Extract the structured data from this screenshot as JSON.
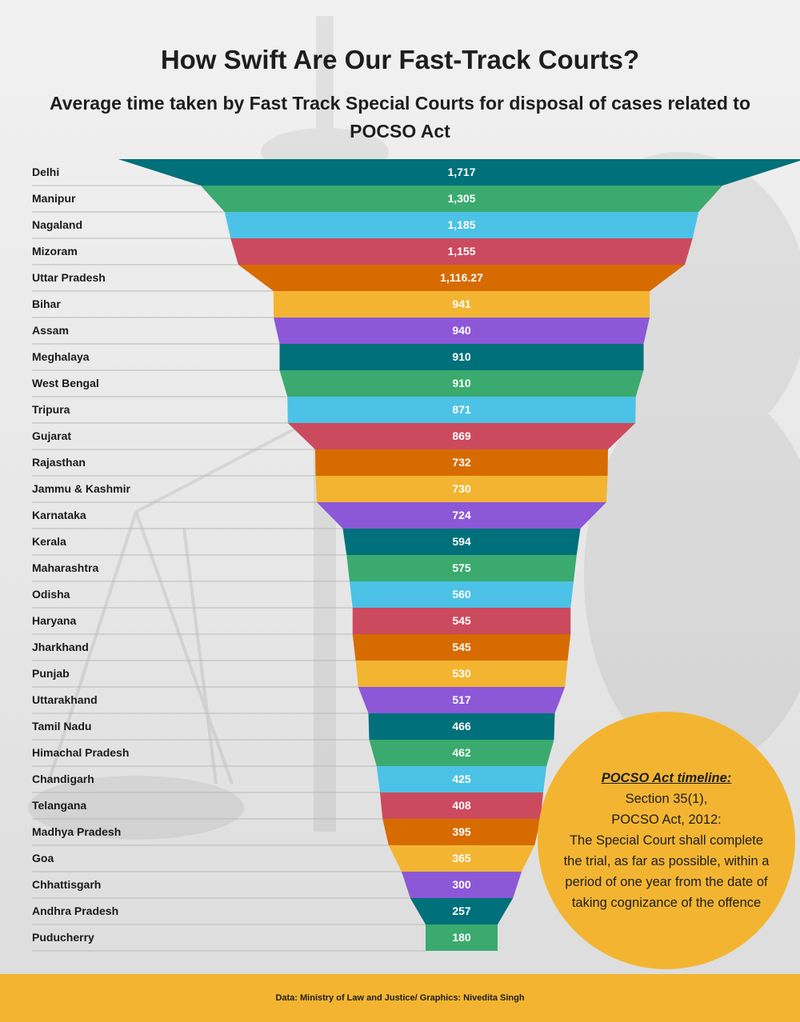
{
  "title": "How Swift Are Our Fast-Track Courts?",
  "subtitle": "Average time taken by Fast Track Special Courts for disposal of cases related to POCSO Act",
  "chart_data": {
    "type": "bar",
    "layout": "funnel",
    "title": "How Swift Are Our Fast-Track Courts?",
    "subtitle": "Average time taken by Fast Track Special Courts for disposal of cases related to POCSO Act",
    "categories": [
      "Delhi",
      "Manipur",
      "Nagaland",
      "Mizoram",
      "Uttar Pradesh",
      "Bihar",
      "Assam",
      "Meghalaya",
      "West Bengal",
      "Tripura",
      "Gujarat",
      "Rajasthan",
      "Jammu & Kashmir",
      "Karnataka",
      "Kerala",
      "Maharashtra",
      "Odisha",
      "Haryana",
      "Jharkhand",
      "Punjab",
      "Uttarakhand",
      "Tamil Nadu",
      "Himachal Pradesh",
      "Chandigarh",
      "Telangana",
      "Madhya Pradesh",
      "Goa",
      "Chhattisgarh",
      "Andhra Pradesh",
      "Puducherry"
    ],
    "values": [
      1717,
      1305,
      1185,
      1155,
      1116.27,
      941,
      940,
      910,
      910,
      871,
      869,
      732,
      730,
      724,
      594,
      575,
      560,
      545,
      545,
      530,
      517,
      466,
      462,
      425,
      408,
      395,
      365,
      300,
      257,
      180
    ],
    "value_labels": [
      "1,717",
      "1,305",
      "1,185",
      "1,155",
      "1,116.27",
      "941",
      "940",
      "910",
      "910",
      "871",
      "869",
      "732",
      "730",
      "724",
      "594",
      "575",
      "560",
      "545",
      "545",
      "530",
      "517",
      "466",
      "462",
      "425",
      "408",
      "395",
      "365",
      "300",
      "257",
      "180"
    ],
    "colors": [
      "#00707a",
      "#3aaa6e",
      "#4cc2e6",
      "#cc4a5e",
      "#d76b00",
      "#f3b531",
      "#8c58d8"
    ],
    "xlabel": "",
    "ylabel": ""
  },
  "callout": {
    "heading": "POCSO Act timeline:",
    "line1": "Section 35(1),",
    "line2": "POCSO Act, 2012:",
    "body": "The Special Court shall complete the trial, as far as possible, within a period of one year from the date of taking cognizance of the offence"
  },
  "footer": {
    "source": "Data: Ministry of Law and Justice/ Graphics: Nivedita Singh"
  }
}
